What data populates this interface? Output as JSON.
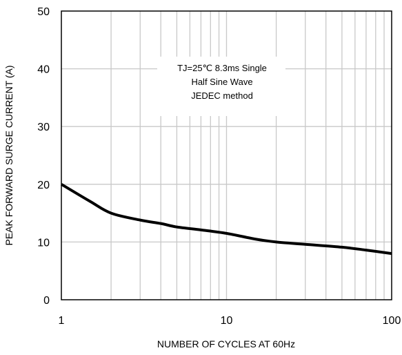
{
  "chart_data": {
    "type": "line",
    "title": "",
    "xlabel": "NUMBER OF CYCLES AT 60Hz",
    "ylabel": "PEAK FORWARD SURGE CURRENT (A)",
    "x_scale": "log",
    "xlim": [
      1,
      100
    ],
    "ylim": [
      0,
      50
    ],
    "x_ticks": [
      "1",
      "10",
      "100"
    ],
    "y_ticks": [
      "0",
      "10",
      "20",
      "30",
      "40",
      "50"
    ],
    "grid": true,
    "annotation": [
      "TJ=25℃ 8.3ms Single",
      "Half  Sine Wave",
      "JEDEC method"
    ],
    "series": [
      {
        "color": "#000000",
        "x": [
          1,
          1.5,
          2,
          3,
          4,
          5,
          7,
          10,
          15,
          20,
          30,
          50,
          70,
          100
        ],
        "y": [
          20,
          17,
          15,
          13.8,
          13.2,
          12.6,
          12.1,
          11.5,
          10.5,
          10,
          9.6,
          9.1,
          8.6,
          8
        ]
      }
    ]
  }
}
